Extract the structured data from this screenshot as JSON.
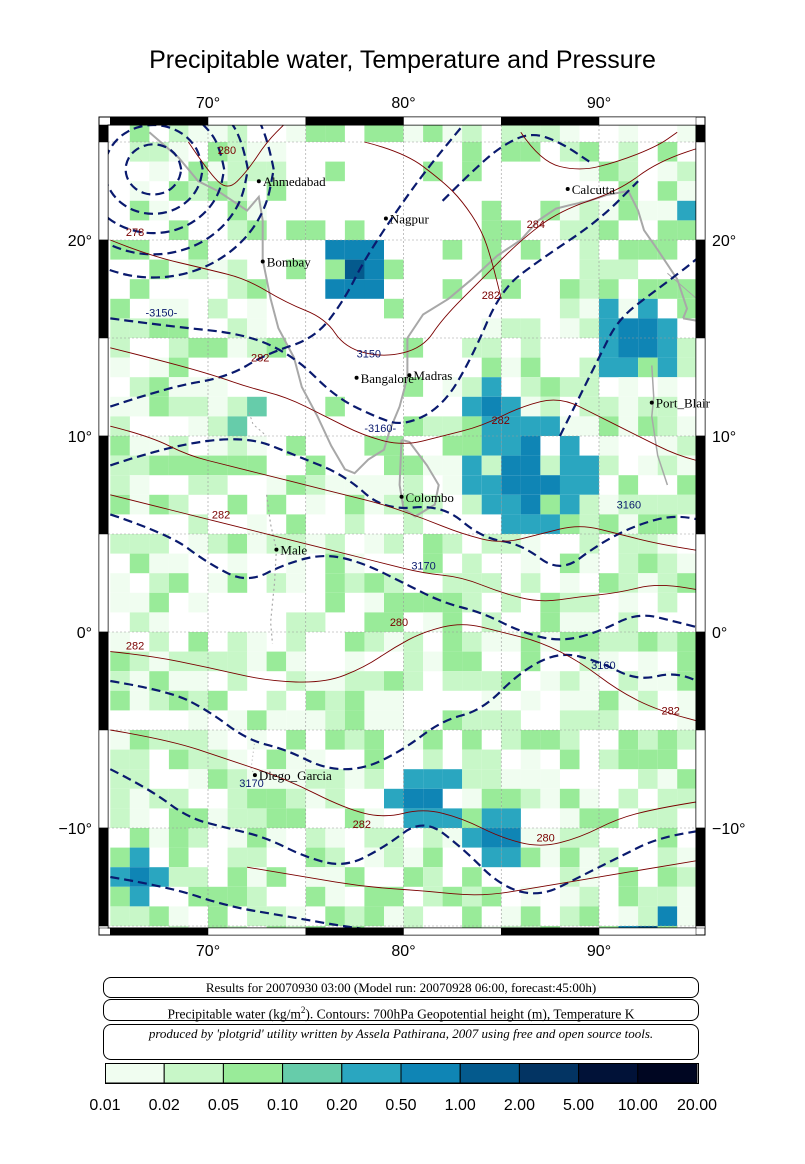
{
  "title": "Precipitable water, Temperature and Pressure",
  "axes": {
    "lon_ticks": [
      "70°",
      "80°",
      "90°"
    ],
    "lat_ticks": [
      "20°",
      "10°",
      "0°",
      "−10°"
    ]
  },
  "cities": [
    {
      "name": "Ahmedabad",
      "lon": 72.6,
      "lat": 23.0
    },
    {
      "name": "Nagpur",
      "lon": 79.1,
      "lat": 21.1
    },
    {
      "name": "Calcutta",
      "lon": 88.4,
      "lat": 22.6
    },
    {
      "name": "Bombay",
      "lon": 72.8,
      "lat": 18.9
    },
    {
      "name": "Bangalore",
      "lon": 77.6,
      "lat": 12.97
    },
    {
      "name": "Madras",
      "lon": 80.3,
      "lat": 13.1
    },
    {
      "name": "Port_Blair",
      "lon": 92.7,
      "lat": 11.7
    },
    {
      "name": "Colombo",
      "lon": 79.9,
      "lat": 6.9
    },
    {
      "name": "Male",
      "lon": 73.5,
      "lat": 4.2
    },
    {
      "name": "Diego_Garcia",
      "lon": 72.4,
      "lat": -7.3
    }
  ],
  "contour_labels": [
    {
      "text": "280",
      "lon": 70.5,
      "lat": 24.4,
      "color": "#7a0000"
    },
    {
      "text": "278",
      "lon": 65.8,
      "lat": 20.2,
      "color": "#7a0000"
    },
    {
      "text": "-3150-",
      "lon": 66.8,
      "lat": 16.1,
      "color": "#0a1a6e"
    },
    {
      "text": "284",
      "lon": 86.3,
      "lat": 20.6,
      "color": "#7a0000"
    },
    {
      "text": "282",
      "lon": 84.0,
      "lat": 17.0,
      "color": "#7a0000"
    },
    {
      "text": "282",
      "lon": 72.2,
      "lat": 13.8,
      "color": "#7a0000"
    },
    {
      "text": "3150",
      "lon": 77.6,
      "lat": 14.0,
      "color": "#0a1a6e"
    },
    {
      "text": "-3160-",
      "lon": 78.0,
      "lat": 10.2,
      "color": "#0a1a6e"
    },
    {
      "text": "282",
      "lon": 84.5,
      "lat": 10.6,
      "color": "#7a0000"
    },
    {
      "text": "3160",
      "lon": 90.9,
      "lat": 6.3,
      "color": "#0a1a6e"
    },
    {
      "text": "282",
      "lon": 70.2,
      "lat": 5.8,
      "color": "#7a0000"
    },
    {
      "text": "3170",
      "lon": 80.4,
      "lat": 3.2,
      "color": "#0a1a6e"
    },
    {
      "text": "280",
      "lon": 79.3,
      "lat": 0.3,
      "color": "#7a0000"
    },
    {
      "text": "282",
      "lon": 65.8,
      "lat": -0.9,
      "color": "#7a0000"
    },
    {
      "text": "3160",
      "lon": 89.6,
      "lat": -1.9,
      "color": "#0a1a6e"
    },
    {
      "text": "282",
      "lon": 93.2,
      "lat": -4.2,
      "color": "#7a0000"
    },
    {
      "text": "3170",
      "lon": 71.6,
      "lat": -7.9,
      "color": "#0a1a6e"
    },
    {
      "text": "282",
      "lon": 77.4,
      "lat": -10.0,
      "color": "#7a0000"
    },
    {
      "text": "280",
      "lon": 86.8,
      "lat": -10.7,
      "color": "#7a0000"
    }
  ],
  "info": {
    "line1": "Results for 20070930 03:00 (Model run: 20070928 06:00, forecast:45:00h)",
    "line2_prefix": "Precipitable water (kg/m",
    "line2_sup": "2",
    "line2_suffix": ").  Contours: 700hPa Geopotential height (m), Temperature K",
    "line3": "produced by 'plotgrid' utility written by Assela Pathirana, 2007 using free and open source tools."
  },
  "colorbar": {
    "labels": [
      "0.01",
      "0.02",
      "0.05",
      "0.10",
      "0.20",
      "0.50",
      "1.00",
      "2.00",
      "5.00",
      "10.00",
      "20.00"
    ],
    "colors": [
      "#f0fdf0",
      "#c8f7c8",
      "#99eb99",
      "#66ccaa",
      "#2aa6c0",
      "#0f85b5",
      "#045a8d",
      "#033463",
      "#011238",
      "#000622"
    ]
  },
  "map": {
    "lon_range": [
      65,
      96
    ],
    "lat_range": [
      -15.5,
      26
    ]
  }
}
